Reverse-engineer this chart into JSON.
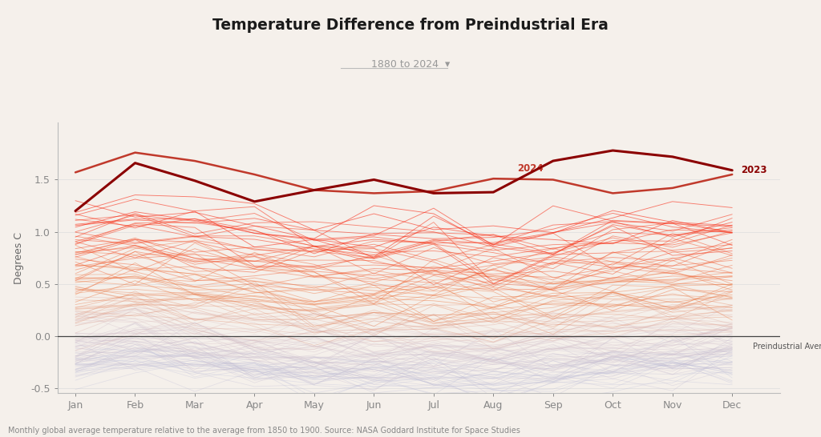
{
  "title": "Temperature Difference from Preindustrial Era",
  "subtitle": "1880 to 2024  ▾",
  "ylabel": "Degrees C",
  "footnote": "Monthly global average temperature relative to the average from 1850 to 1900. Source: NASA Goddard Institute for Space Studies",
  "background_color": "#f5f0eb",
  "preindustrial_label": "Preindustrial Average",
  "year_start": 1880,
  "year_end": 2024,
  "highlight_2023": [
    1.2,
    1.66,
    1.49,
    1.29,
    1.4,
    1.5,
    1.37,
    1.38,
    1.68,
    1.78,
    1.72,
    1.59
  ],
  "highlight_2024": [
    1.57,
    1.76,
    1.68,
    1.55,
    1.4,
    1.37,
    1.39,
    1.51,
    1.5,
    1.37,
    1.42,
    1.55
  ],
  "color_2023": "#8B0000",
  "color_2024": "#C0392B",
  "label_color_2023": "#8B0000",
  "label_color_2024": "#C0392B",
  "ylim": [
    -0.55,
    2.05
  ],
  "yticks": [
    -0.5,
    0.0,
    0.5,
    1.0,
    1.5
  ],
  "months": [
    "Jan",
    "Feb",
    "Mar",
    "Apr",
    "May",
    "Jun",
    "Jul",
    "Aug",
    "Sep",
    "Oct",
    "Nov",
    "Dec"
  ]
}
